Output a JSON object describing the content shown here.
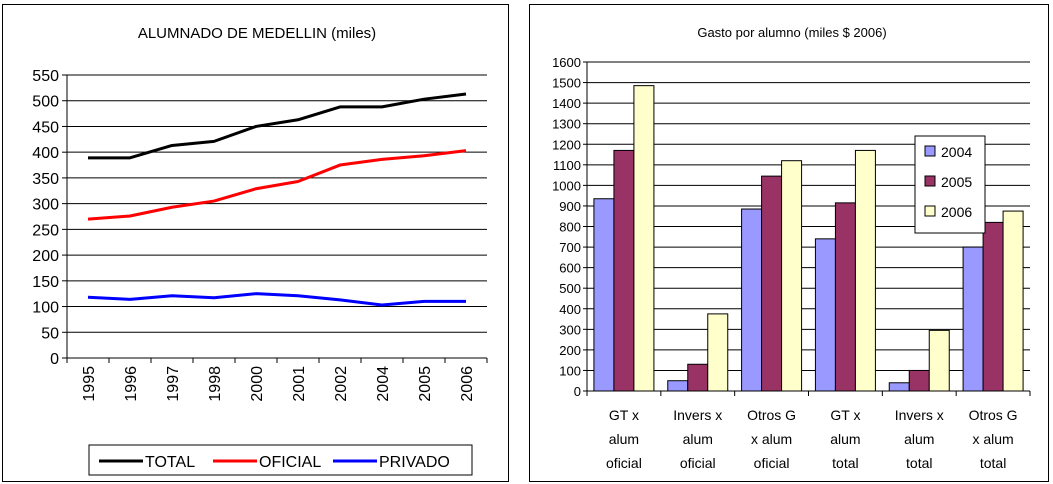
{
  "chart_data": [
    {
      "type": "line",
      "title": "ALUMNADO DE MEDELLIN (miles)",
      "x": [
        "1995",
        "1996",
        "1997",
        "1998",
        "2000",
        "2001",
        "2002",
        "2004",
        "2005",
        "2006"
      ],
      "ylim": [
        0,
        550
      ],
      "yticks": [
        0,
        50,
        100,
        150,
        200,
        250,
        300,
        350,
        400,
        450,
        500,
        550
      ],
      "grid": true,
      "legend": "bottom",
      "series": [
        {
          "name": "TOTAL",
          "color": "#000000",
          "values": [
            389,
            389,
            413,
            421,
            450,
            463,
            488,
            488,
            503,
            513
          ]
        },
        {
          "name": "OFICIAL",
          "color": "#ff0000",
          "values": [
            270,
            276,
            293,
            305,
            329,
            343,
            375,
            386,
            393,
            403
          ]
        },
        {
          "name": "PRIVADO",
          "color": "#0000ff",
          "values": [
            118,
            114,
            121,
            117,
            125,
            121,
            113,
            103,
            110,
            110
          ]
        }
      ]
    },
    {
      "type": "bar",
      "title": "Gasto por alumno (miles $ 2006)",
      "categories": [
        [
          "GT x",
          "alum",
          "oficial"
        ],
        [
          "Invers x",
          "alum",
          "oficial"
        ],
        [
          "Otros G",
          "x alum",
          "oficial"
        ],
        [
          "GT x",
          "alum",
          "total"
        ],
        [
          "Invers x",
          "alum",
          "total"
        ],
        [
          "Otros G",
          "x alum",
          "total"
        ]
      ],
      "ylim": [
        0,
        1600
      ],
      "yticks": [
        0,
        100,
        200,
        300,
        400,
        500,
        600,
        700,
        800,
        900,
        1000,
        1100,
        1200,
        1300,
        1400,
        1500,
        1600
      ],
      "grid": true,
      "legend": "right",
      "series": [
        {
          "name": "2004",
          "color": "#9999ff",
          "values": [
            935,
            50,
            885,
            740,
            40,
            700
          ]
        },
        {
          "name": "2005",
          "color": "#993366",
          "values": [
            1170,
            130,
            1045,
            915,
            100,
            820
          ]
        },
        {
          "name": "2006",
          "color": "#ffffcc",
          "values": [
            1485,
            375,
            1120,
            1170,
            295,
            875
          ]
        }
      ]
    }
  ]
}
